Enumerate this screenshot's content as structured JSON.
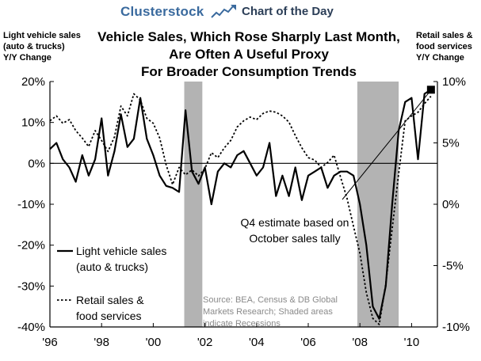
{
  "header": {
    "brand": "Clusterstock",
    "subtitle": "Chart of the Day",
    "logo_icon": "rising-chart-icon"
  },
  "chart_data": {
    "type": "line",
    "title": "Vehicle Sales, Which Rose Sharply Last Month, Are Often A Useful Proxy For Broader Consumption Trends",
    "title_lines": [
      "Vehicle Sales, Which Rose Sharply Last Month,",
      "Are Often A Useful Proxy",
      "For Broader Consumption Trends"
    ],
    "ylabel_left_lines": [
      "Light vehicle sales",
      "(auto & trucks)",
      "Y/Y Change"
    ],
    "ylabel_right_lines": [
      "Retail sales &",
      "food services",
      "Y/Y Change"
    ],
    "xlim": [
      1996,
      2011
    ],
    "x_ticks": [
      1996,
      1998,
      2000,
      2002,
      2004,
      2006,
      2008,
      2010
    ],
    "x_tick_labels": [
      "'96",
      "'98",
      "'00",
      "'02",
      "'04",
      "'06",
      "'08",
      "'10"
    ],
    "ylim_left": [
      -40,
      20
    ],
    "y_ticks_left": [
      20,
      10,
      0,
      -10,
      -20,
      -30,
      -40
    ],
    "y_tick_labels_left": [
      "20%",
      "10%",
      "0%",
      "-10%",
      "-20%",
      "-30%",
      "-40%"
    ],
    "ylim_right": [
      -10,
      10
    ],
    "y_ticks_right": [
      10,
      5,
      0,
      -5,
      -10
    ],
    "y_tick_labels_right": [
      "10%",
      "5%",
      "0%",
      "-5%",
      "-10%"
    ],
    "recessions": [
      [
        2001.2,
        2001.9
      ],
      [
        2007.9,
        2009.5
      ]
    ],
    "series": [
      {
        "name": "Light vehicle sales (auto & trucks)",
        "axis": "left",
        "style": "solid",
        "color": "#000000",
        "x": [
          1996.0,
          1996.25,
          1996.5,
          1996.75,
          1997.0,
          1997.25,
          1997.5,
          1997.75,
          1998.0,
          1998.25,
          1998.5,
          1998.75,
          1999.0,
          1999.25,
          1999.5,
          1999.75,
          2000.0,
          2000.25,
          2000.5,
          2000.75,
          2001.0,
          2001.25,
          2001.5,
          2001.75,
          2002.0,
          2002.25,
          2002.5,
          2002.75,
          2003.0,
          2003.25,
          2003.5,
          2003.75,
          2004.0,
          2004.25,
          2004.5,
          2004.75,
          2005.0,
          2005.25,
          2005.5,
          2005.75,
          2006.0,
          2006.25,
          2006.5,
          2006.75,
          2007.0,
          2007.25,
          2007.5,
          2007.75,
          2008.0,
          2008.25,
          2008.5,
          2008.75,
          2009.0,
          2009.25,
          2009.5,
          2009.75,
          2010.0,
          2010.25,
          2010.5,
          2010.75
        ],
        "values": [
          3.5,
          5,
          1,
          -1,
          -4.5,
          2,
          -3,
          1,
          11,
          -3,
          3,
          12,
          4,
          6,
          16,
          6,
          2,
          -3,
          -5.5,
          -6,
          -7,
          13,
          -2,
          -5,
          -1,
          -10,
          -2,
          0,
          -1,
          2,
          3,
          0,
          -3,
          -1,
          5,
          -8,
          -3,
          -8,
          -1,
          -9,
          -3,
          -2,
          -1,
          -6,
          -3,
          -2,
          -2,
          -3,
          -10,
          -20,
          -35,
          -38,
          -30,
          -10,
          8,
          15,
          16,
          1,
          17,
          18
        ],
        "markers": [
          {
            "x": 2010.75,
            "value": 18,
            "shape": "square"
          }
        ]
      },
      {
        "name": "Retail sales & food services",
        "axis": "right",
        "style": "dotted",
        "color": "#000000",
        "x": [
          1996.0,
          1996.25,
          1996.5,
          1996.75,
          1997.0,
          1997.25,
          1997.5,
          1997.75,
          1998.0,
          1998.25,
          1998.5,
          1998.75,
          1999.0,
          1999.25,
          1999.5,
          1999.75,
          2000.0,
          2000.25,
          2000.5,
          2000.75,
          2001.0,
          2001.25,
          2001.5,
          2001.75,
          2002.0,
          2002.25,
          2002.5,
          2002.75,
          2003.0,
          2003.25,
          2003.5,
          2003.75,
          2004.0,
          2004.25,
          2004.5,
          2004.75,
          2005.0,
          2005.25,
          2005.5,
          2005.75,
          2006.0,
          2006.25,
          2006.5,
          2006.75,
          2007.0,
          2007.25,
          2007.5,
          2007.75,
          2008.0,
          2008.25,
          2008.5,
          2008.75,
          2009.0,
          2009.25,
          2009.5,
          2009.75,
          2010.0,
          2010.25,
          2010.5,
          2010.75
        ],
        "values": [
          6.8,
          7.2,
          6.6,
          6.9,
          6.0,
          5.4,
          4.7,
          6.0,
          5.2,
          4.3,
          5.5,
          8.0,
          7.2,
          9.0,
          8.5,
          7.0,
          6.6,
          5.4,
          3.2,
          1.6,
          3.0,
          2.4,
          2.8,
          2.3,
          2.9,
          4.2,
          3.8,
          4.6,
          5.2,
          6.3,
          6.8,
          7.1,
          6.9,
          7.4,
          7.6,
          7.5,
          7.2,
          6.7,
          5.6,
          4.6,
          3.8,
          3.6,
          3.0,
          3.4,
          4.0,
          2.2,
          0.5,
          -1.8,
          -4.0,
          -7.2,
          -9.3,
          -9.8,
          -6.5,
          -2.0,
          2.5,
          6.8,
          7.2,
          7.5,
          8.2,
          8.8
        ]
      }
    ],
    "legend": [
      {
        "label_lines": [
          "Light vehicle sales",
          "(auto & trucks)"
        ],
        "style": "solid"
      },
      {
        "label_lines": [
          "Retail sales &",
          "food services"
        ],
        "style": "dotted"
      }
    ],
    "legend_position": "bottom-left",
    "annotations": [
      {
        "text_lines": [
          "Q4 estimate based on",
          "October sales tally"
        ]
      }
    ],
    "source_lines": [
      "Source: BEA, Census & DB Global",
      "Markets Research; Shaded areas",
      "indicate Recessions"
    ],
    "grid": false
  }
}
